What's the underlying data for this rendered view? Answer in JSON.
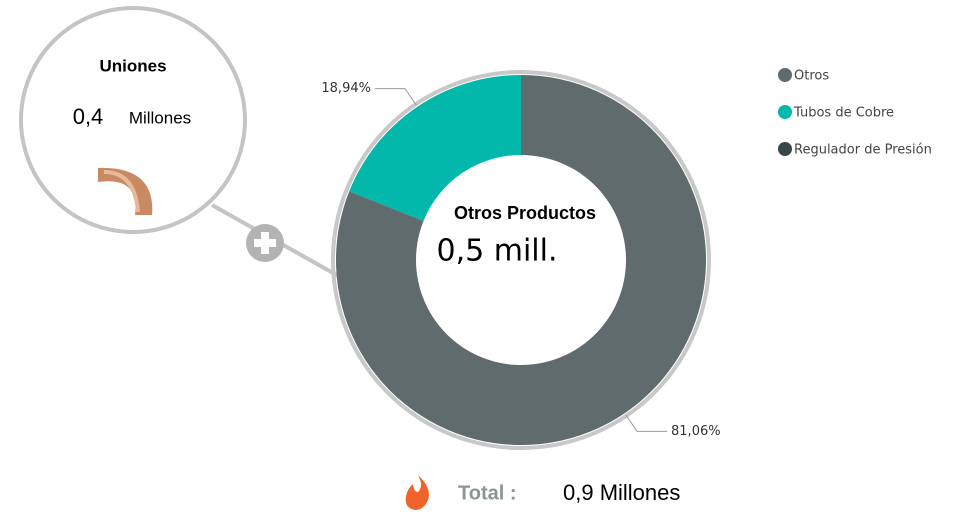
{
  "chart_data": {
    "type": "donut",
    "categories": [
      "Otros",
      "Tubos de Cobre",
      "Regulador de Presión"
    ],
    "values": [
      81.06,
      18.94,
      0
    ],
    "value_labels": [
      "81,06%",
      "18,94%",
      null
    ],
    "colors": [
      "#5f6b6d",
      "#01b8aa",
      "#374649"
    ],
    "center_title": "Otros Productos",
    "center_value": "0,5 mill.",
    "legend": "top-right"
  },
  "side_card": {
    "title": "Uniones",
    "value": "0,4",
    "unit": "Millones"
  },
  "total": {
    "label": "Total :",
    "value": "0,9 Millones"
  }
}
